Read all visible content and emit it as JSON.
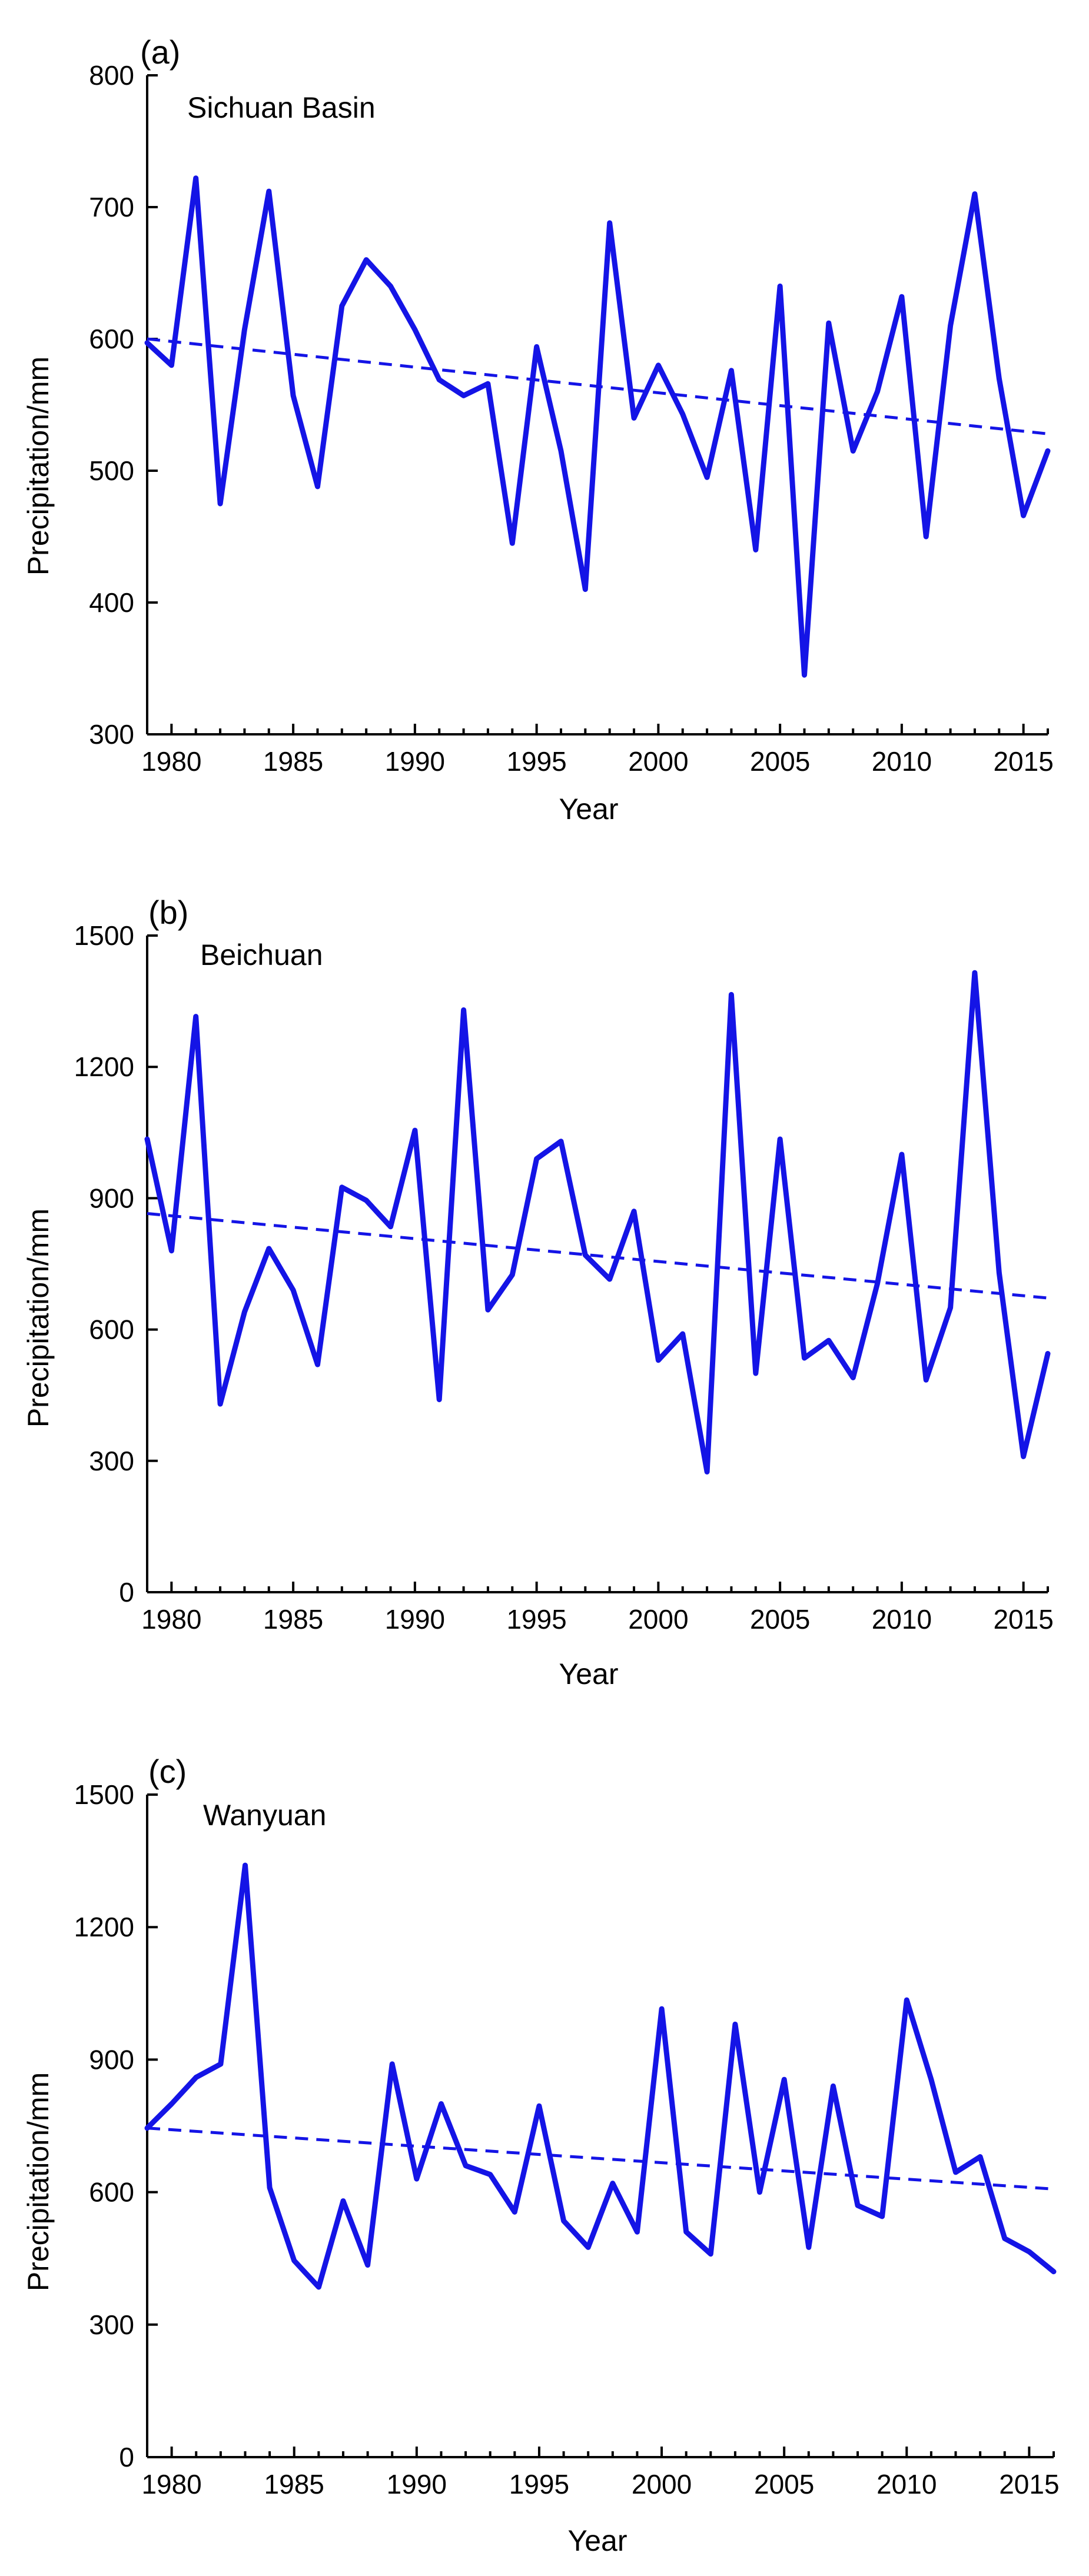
{
  "chart_data": [
    {
      "type": "line",
      "panel_label": "(a)",
      "station": "Sichuan Basin",
      "xlabel": "Year",
      "ylabel": "Precipitation/mm",
      "xlim": [
        1979,
        2016
      ],
      "ylim": [
        300,
        800
      ],
      "xticks": [
        1980,
        1985,
        1990,
        1995,
        2000,
        2005,
        2010,
        2015
      ],
      "yticks": [
        300,
        400,
        500,
        600,
        700,
        800
      ],
      "line_color": "#1414e6",
      "x": [
        1979,
        1980,
        1981,
        1982,
        1983,
        1984,
        1985,
        1986,
        1987,
        1988,
        1989,
        1990,
        1991,
        1992,
        1993,
        1994,
        1995,
        1996,
        1997,
        1998,
        1999,
        2000,
        2001,
        2002,
        2003,
        2004,
        2005,
        2006,
        2007,
        2008,
        2009,
        2010,
        2011,
        2012,
        2013,
        2014,
        2015,
        2016
      ],
      "values": [
        597,
        580,
        722,
        475,
        607,
        712,
        557,
        488,
        625,
        660,
        640,
        607,
        569,
        557,
        566,
        445,
        594,
        515,
        410,
        688,
        540,
        580,
        543,
        495,
        576,
        440,
        640,
        345,
        612,
        515,
        560,
        632,
        450,
        610,
        710,
        570,
        466,
        515
      ],
      "trend": {
        "x": [
          1979,
          2016
        ],
        "y": [
          600,
          528
        ]
      }
    },
    {
      "type": "line",
      "panel_label": "(b)",
      "station": "Beichuan",
      "xlabel": "Year",
      "ylabel": "Precipitation/mm",
      "xlim": [
        1979,
        2016
      ],
      "ylim": [
        0,
        1500
      ],
      "xticks": [
        1980,
        1985,
        1990,
        1995,
        2000,
        2005,
        2010,
        2015
      ],
      "yticks": [
        0,
        300,
        600,
        900,
        1200,
        1500
      ],
      "line_color": "#1414e6",
      "x": [
        1979,
        1980,
        1981,
        1982,
        1983,
        1984,
        1985,
        1986,
        1987,
        1988,
        1989,
        1990,
        1991,
        1992,
        1993,
        1994,
        1995,
        1996,
        1997,
        1998,
        1999,
        2000,
        2001,
        2002,
        2003,
        2004,
        2005,
        2006,
        2007,
        2008,
        2009,
        2010,
        2011,
        2012,
        2013,
        2014,
        2015,
        2016
      ],
      "values": [
        1035,
        780,
        1315,
        430,
        640,
        785,
        690,
        520,
        925,
        895,
        835,
        1055,
        440,
        1330,
        645,
        725,
        990,
        1030,
        770,
        715,
        870,
        530,
        590,
        275,
        1365,
        500,
        1035,
        535,
        575,
        490,
        705,
        1000,
        485,
        650,
        1415,
        730,
        310,
        545
      ],
      "trend": {
        "x": [
          1979,
          2016
        ],
        "y": [
          865,
          672
        ]
      }
    },
    {
      "type": "line",
      "panel_label": "(c)",
      "station": "Wanyuan",
      "xlabel": "Year",
      "ylabel": "Precipitation/mm",
      "xlim": [
        1979,
        2016
      ],
      "ylim": [
        0,
        1500
      ],
      "xticks": [
        1980,
        1985,
        1990,
        1995,
        2000,
        2005,
        2010,
        2015
      ],
      "yticks": [
        0,
        300,
        600,
        900,
        1200,
        1500
      ],
      "line_color": "#1414e6",
      "x": [
        1979,
        1980,
        1981,
        1982,
        1983,
        1984,
        1985,
        1986,
        1987,
        1988,
        1989,
        1990,
        1991,
        1992,
        1993,
        1994,
        1995,
        1996,
        1997,
        1998,
        1999,
        2000,
        2001,
        2002,
        2003,
        2004,
        2005,
        2006,
        2007,
        2008,
        2009,
        2010,
        2011,
        2012,
        2013,
        2014,
        2015,
        2016
      ],
      "values": [
        745,
        800,
        860,
        890,
        1340,
        610,
        445,
        385,
        580,
        435,
        890,
        630,
        800,
        660,
        640,
        555,
        795,
        535,
        475,
        620,
        510,
        1015,
        510,
        460,
        980,
        600,
        855,
        475,
        840,
        570,
        545,
        1035,
        855,
        645,
        680,
        495,
        465,
        420
      ],
      "trend": {
        "x": [
          1979,
          2016
        ],
        "y": [
          745,
          607
        ]
      }
    }
  ]
}
